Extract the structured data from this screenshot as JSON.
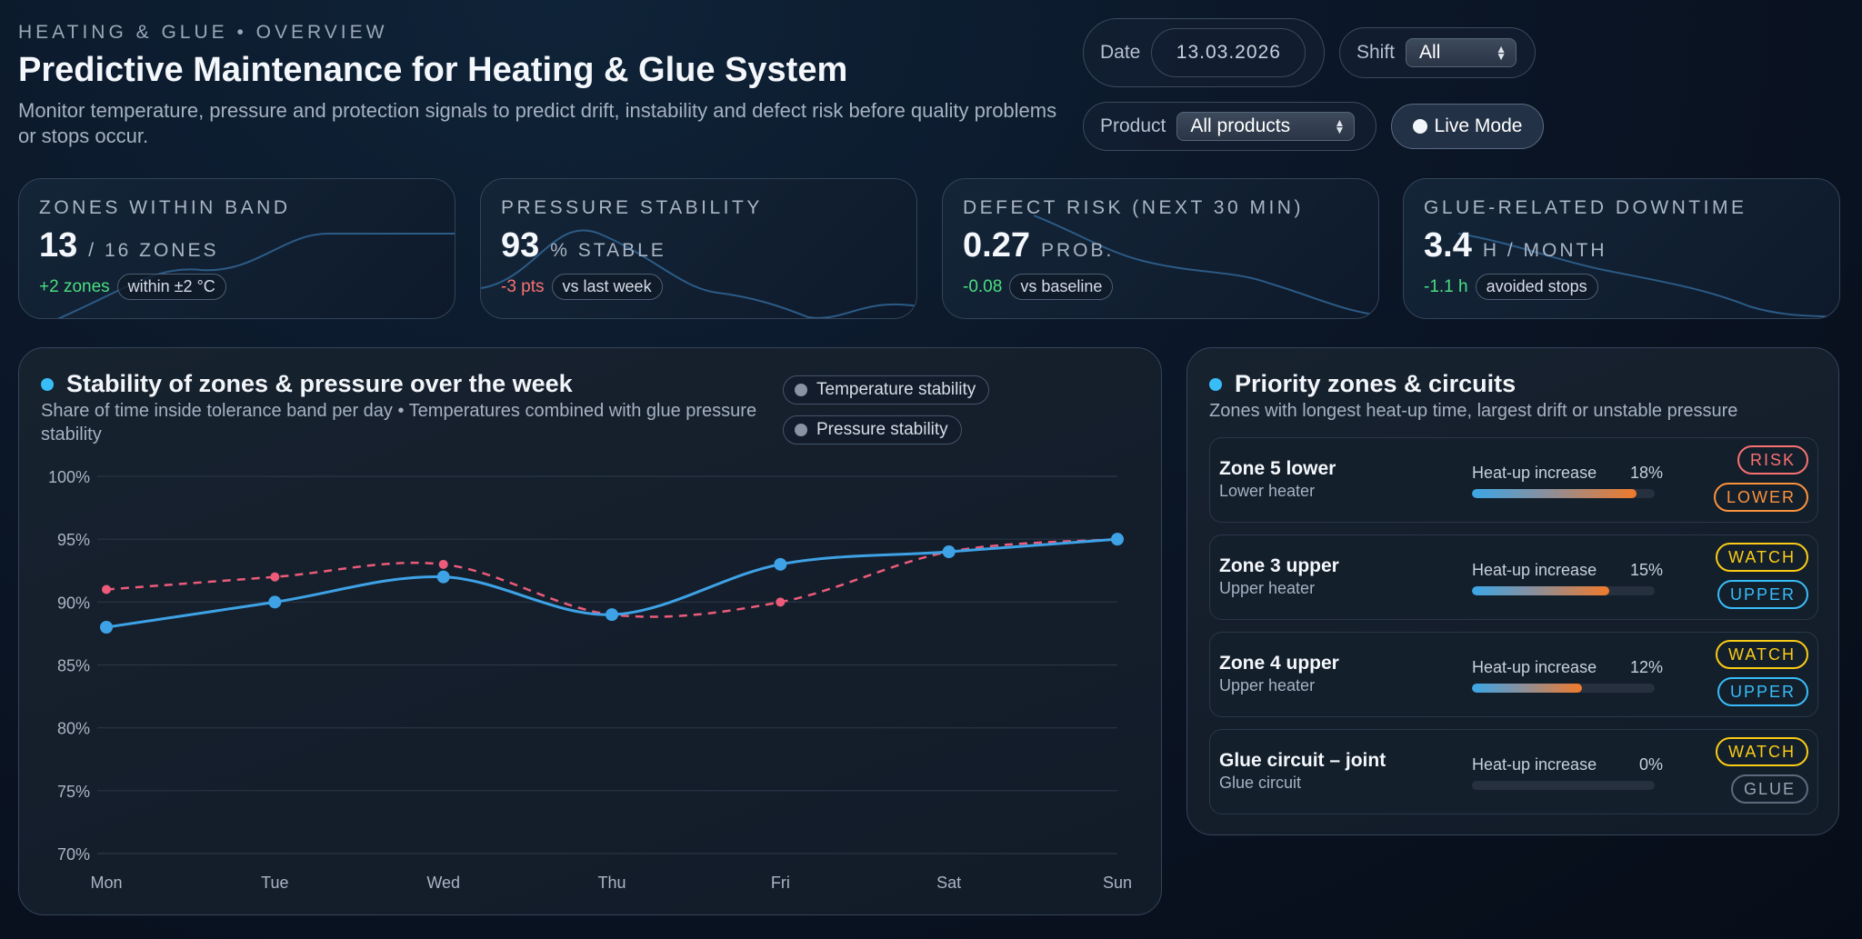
{
  "header": {
    "eyebrow": "HEATING & GLUE • OVERVIEW",
    "title": "Predictive Maintenance for Heating & Glue System",
    "subtitle": "Monitor temperature, pressure and protection signals to predict drift, instability and defect risk before quality problems or stops occur."
  },
  "controls": {
    "date_label": "Date",
    "date_value": "13.03.2026",
    "shift_label": "Shift",
    "shift_value": "All",
    "product_label": "Product",
    "product_value": "All products",
    "live_label": "Live Mode"
  },
  "kpis": [
    {
      "label": "ZONES WITHIN BAND",
      "value": "13",
      "unit": "/ 16 ZONES",
      "delta": "+2 zones",
      "delta_type": "pos",
      "tag": "within ±2 °C"
    },
    {
      "label": "PRESSURE STABILITY",
      "value": "93",
      "unit": "% STABLE",
      "delta": "-3 pts",
      "delta_type": "neg",
      "tag": "vs last week"
    },
    {
      "label": "DEFECT RISK (NEXT 30 MIN)",
      "value": "0.27",
      "unit": "PROB.",
      "delta": "-0.08",
      "delta_type": "pos",
      "tag": "vs baseline"
    },
    {
      "label": "GLUE-RELATED DOWNTIME",
      "value": "3.4",
      "unit": "H / MONTH",
      "delta": "-1.1 h",
      "delta_type": "pos",
      "tag": "avoided stops"
    }
  ],
  "stability_panel": {
    "title": "Stability of zones & pressure over the week",
    "subtitle": "Share of time inside tolerance band per day • Temperatures combined with glue pressure stability"
  },
  "chart_data": {
    "type": "line",
    "categories": [
      "Mon",
      "Tue",
      "Wed",
      "Thu",
      "Fri",
      "Sat",
      "Sun"
    ],
    "series": [
      {
        "name": "Temperature stability",
        "values": [
          88,
          90,
          92,
          89,
          93,
          94,
          95
        ],
        "color": "#3ea2e6",
        "style": "solid"
      },
      {
        "name": "Pressure stability",
        "values": [
          91,
          92,
          93,
          89,
          90,
          94,
          95
        ],
        "color": "#ec5b7a",
        "style": "dashed"
      }
    ],
    "ylim": [
      70,
      100
    ],
    "yticks": [
      "100%",
      "95%",
      "90%",
      "85%",
      "80%",
      "75%",
      "70%"
    ],
    "ytick_values": [
      100,
      95,
      90,
      85,
      80,
      75,
      70
    ],
    "grid": true,
    "legend": "top-right"
  },
  "priority_panel": {
    "title": "Priority zones & circuits",
    "subtitle": "Zones with longest heat-up time, largest drift or unstable pressure",
    "heat_label": "Heat-up increase",
    "zones": [
      {
        "name": "Zone 5 lower",
        "sub": "Lower heater",
        "pct": "18%",
        "value": 18,
        "badge1": "RISK",
        "badge1_type": "risk",
        "badge2": "LOWER",
        "badge2_type": "lower"
      },
      {
        "name": "Zone 3 upper",
        "sub": "Upper heater",
        "pct": "15%",
        "value": 15,
        "badge1": "WATCH",
        "badge1_type": "watch",
        "badge2": "UPPER",
        "badge2_type": "upper"
      },
      {
        "name": "Zone 4 upper",
        "sub": "Upper heater",
        "pct": "12%",
        "value": 12,
        "badge1": "WATCH",
        "badge1_type": "watch",
        "badge2": "UPPER",
        "badge2_type": "upper"
      },
      {
        "name": "Glue circuit – joint",
        "sub": "Glue circuit",
        "pct": "0%",
        "value": 0,
        "badge1": "WATCH",
        "badge1_type": "watch",
        "badge2": "GLUE",
        "badge2_type": "glue"
      }
    ]
  }
}
